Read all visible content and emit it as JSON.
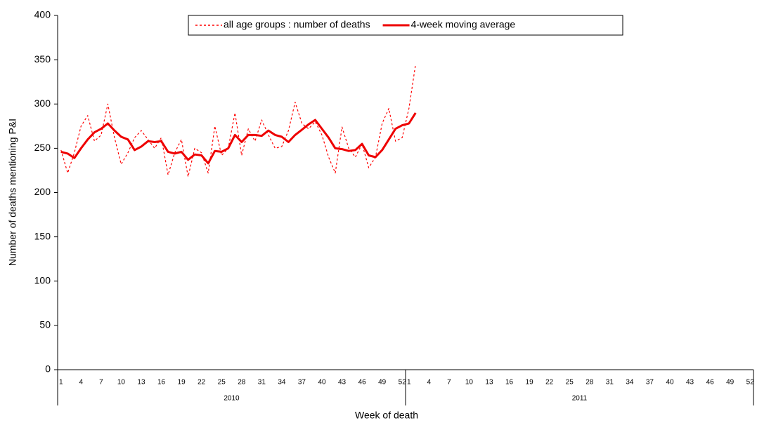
{
  "chart_data": {
    "type": "line",
    "y_label": "Number of deaths mentioning P&I",
    "x_label": "Week of death",
    "groups": [
      {
        "label": "2010",
        "count": 52
      },
      {
        "label": "2011",
        "count": 52
      }
    ],
    "categories": [
      "1",
      null,
      null,
      "4",
      null,
      null,
      "7",
      null,
      null,
      "10",
      null,
      null,
      "13",
      null,
      null,
      "16",
      null,
      null,
      "19",
      null,
      null,
      "22",
      null,
      null,
      "25",
      null,
      null,
      "28",
      null,
      null,
      "31",
      null,
      null,
      "34",
      null,
      null,
      "37",
      null,
      null,
      "40",
      null,
      null,
      "43",
      null,
      null,
      "46",
      null,
      null,
      "49",
      null,
      null,
      "52",
      "1",
      null,
      null,
      "4",
      null,
      null,
      "7",
      null,
      null,
      "10",
      null,
      null,
      "13",
      null,
      null,
      "16",
      null,
      null,
      "19",
      null,
      null,
      "22",
      null,
      null,
      "25",
      null,
      null,
      "28",
      null,
      null,
      "31",
      null,
      null,
      "34",
      null,
      null,
      "37",
      null,
      null,
      "40",
      null,
      null,
      "43",
      null,
      null,
      "46",
      null,
      null,
      "49",
      null,
      null,
      "52"
    ],
    "series": [
      {
        "name": "all age groups : number of deaths",
        "color": "#ff0000",
        "dash": true,
        "values": [
          248,
          222,
          245,
          275,
          287,
          258,
          265,
          300,
          262,
          232,
          245,
          262,
          270,
          260,
          250,
          262,
          220,
          245,
          260,
          218,
          250,
          245,
          222,
          275,
          242,
          250,
          290,
          242,
          272,
          258,
          282,
          265,
          250,
          252,
          270,
          302,
          278,
          272,
          280,
          265,
          240,
          222,
          274,
          250,
          240,
          255,
          228,
          240,
          278,
          295,
          258,
          262,
          295,
          345,
          null,
          null,
          null,
          null,
          null,
          null,
          null,
          null,
          null,
          null,
          null,
          null,
          null,
          null,
          null,
          null,
          null,
          null,
          null,
          null,
          null,
          null,
          null,
          null,
          null,
          null,
          null,
          null,
          null,
          null,
          null,
          null,
          null,
          null,
          null,
          null,
          null,
          null,
          null,
          null,
          null,
          null,
          null,
          null,
          null,
          null,
          null,
          null,
          null,
          null
        ]
      },
      {
        "name": "4-week moving average",
        "color": "#ee0000",
        "dash": false,
        "values": [
          246,
          244,
          239,
          250,
          260,
          268,
          272,
          278,
          270,
          263,
          260,
          248,
          252,
          258,
          257,
          258,
          246,
          244,
          246,
          237,
          243,
          242,
          233,
          247,
          246,
          250,
          265,
          257,
          265,
          265,
          264,
          270,
          265,
          263,
          257,
          265,
          271,
          277,
          282,
          272,
          262,
          250,
          249,
          247,
          248,
          255,
          242,
          240,
          248,
          260,
          272,
          276,
          278,
          290,
          null,
          null,
          null,
          null,
          null,
          null,
          null,
          null,
          null,
          null,
          null,
          null,
          null,
          null,
          null,
          null,
          null,
          null,
          null,
          null,
          null,
          null,
          null,
          null,
          null,
          null,
          null,
          null,
          null,
          null,
          null,
          null,
          null,
          null,
          null,
          null,
          null,
          null,
          null,
          null,
          null,
          null,
          null,
          null,
          null,
          null,
          null,
          null,
          null,
          null
        ]
      }
    ],
    "ylim": [
      0,
      400
    ],
    "yticks": [
      0,
      50,
      100,
      150,
      200,
      250,
      300,
      350,
      400
    ],
    "grid": false,
    "legend": "top"
  }
}
